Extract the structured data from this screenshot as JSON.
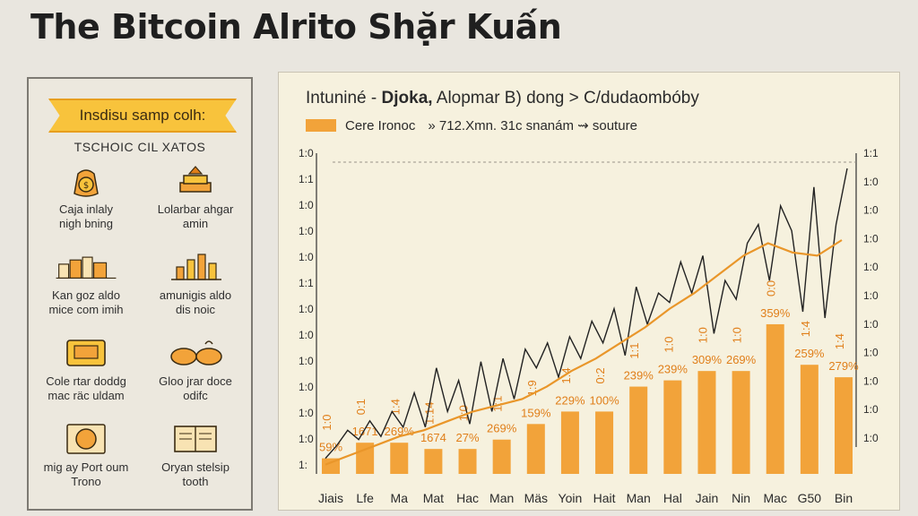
{
  "page": {
    "title": "The Bitcoin Alrito Shặr Kuấn"
  },
  "sidebar": {
    "ribbon": "Insdisu samp colh:",
    "subtitle": "TSCHOIC CIL XATOS",
    "features": [
      {
        "icon": "coin-bag-icon",
        "label": "Caja inlaly\nnigh bning"
      },
      {
        "icon": "money-stack-icon",
        "label": "Lolarbar ahgar\namin"
      },
      {
        "icon": "city-buildings-icon",
        "label": "Kan goz aldo\nmice com imih"
      },
      {
        "icon": "trading-chart-icon",
        "label": "amunigis aldo\ndis noic"
      },
      {
        "icon": "gold-card-icon",
        "label": "Cole rtar doddg\nmac räc uldam"
      },
      {
        "icon": "gold-bars-icon",
        "label": "Gloo jrar doce\nodifc"
      },
      {
        "icon": "coin-hand-icon",
        "label": "mig ay Port oum\nTrono"
      },
      {
        "icon": "ledger-book-icon",
        "label": "Oryan stelsip\ntooth"
      }
    ]
  },
  "colors": {
    "accent": "#f2a33a",
    "line": "#222222",
    "trend": "#e9962a"
  },
  "chart_data": {
    "type": "bar",
    "title_prefix": "Intuniné -",
    "title_bold": "Djoka,",
    "title_rest": "Alopmar B) dong > C/dudaombóby",
    "legend": [
      {
        "name": "Cere Ironoc",
        "note": "» 712.Xmn. 31c snanám ⇝ souture"
      }
    ],
    "categories": [
      "Jiais",
      "Lfe",
      "Ma",
      "Mat",
      "Hac",
      "Man",
      "Mäs",
      "Yoin",
      "Hait",
      "Man",
      "Hal",
      "Jain",
      "Nin",
      "Mac",
      "G50",
      "Bin"
    ],
    "bar_values": [
      5,
      10,
      10,
      8,
      8,
      11,
      16,
      20,
      20,
      28,
      30,
      33,
      33,
      48,
      35,
      31
    ],
    "bar_labels": [
      "59%",
      "1671",
      "269%",
      "1674",
      "27%",
      "269%",
      "159%",
      "229%",
      "100%",
      "239%",
      "239%",
      "309%",
      "269%",
      "359%",
      "259%",
      "279%"
    ],
    "line_values": [
      5,
      9,
      14,
      11,
      17,
      12,
      20,
      15,
      26,
      15,
      34,
      20,
      30,
      16,
      36,
      20,
      37,
      24,
      40,
      34,
      42,
      31,
      44,
      37,
      49,
      42,
      53,
      38,
      60,
      48,
      58,
      55,
      68,
      58,
      70,
      45,
      62,
      56,
      74,
      80,
      62,
      86,
      78,
      52,
      92,
      50,
      80,
      98
    ],
    "trend_values": [
      3,
      6,
      9,
      12,
      14,
      17,
      20,
      22,
      24,
      28,
      33,
      37,
      42,
      47,
      53,
      58,
      64,
      70,
      74,
      71,
      70,
      75
    ],
    "upper_labels": [
      "1:0",
      "0:1",
      "1:4",
      "1:14",
      "1:0",
      "1:1",
      "1:9",
      "1:4",
      "0:2",
      "1:1",
      "1:0",
      "1:0",
      "1:0",
      "0:0",
      "1:4",
      "1:4"
    ],
    "ytick_labels": [
      "1:0",
      "1:1",
      "1:0",
      "1:0",
      "1:0",
      "1:1",
      "1:0",
      "1:0",
      "1:0",
      "1:0",
      "1:0",
      "1:0",
      "1:"
    ],
    "right_tick_labels": [
      "1:1",
      "1:0",
      "1:0",
      "1:0",
      "1:0",
      "1:0",
      "1:0",
      "1:0",
      "1:0",
      "1:0",
      "1:0"
    ],
    "ylim": [
      0,
      100
    ],
    "grid": false
  }
}
